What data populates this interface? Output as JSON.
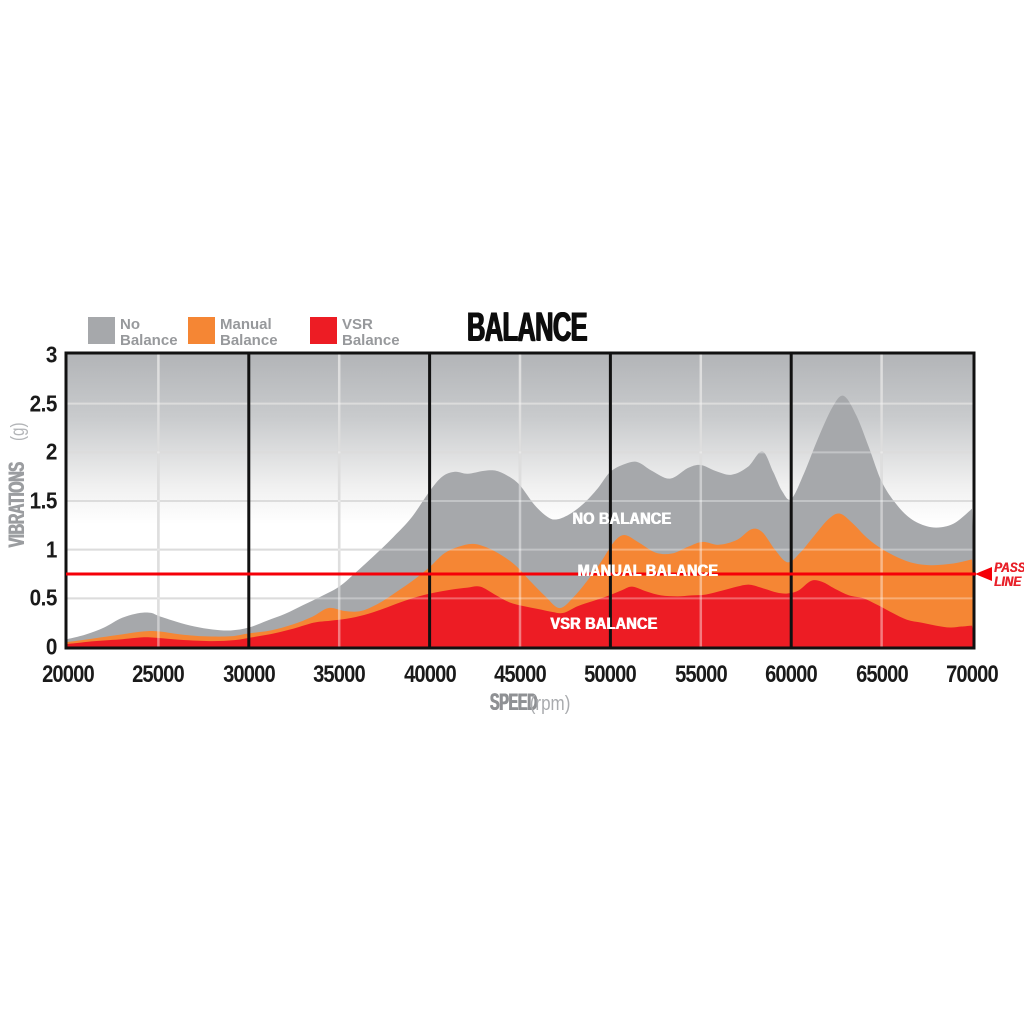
{
  "title": "BALANCE",
  "legend": [
    {
      "line1": "No",
      "line2": "Balance",
      "color": "#a6a8ab"
    },
    {
      "line1": "Manual",
      "line2": "Balance",
      "color": "#f58634"
    },
    {
      "line1": "VSR",
      "line2": "Balance",
      "color": "#ed1c24"
    }
  ],
  "y_axis": {
    "label": "VIBRATIONS",
    "unit": "(g)",
    "ticks": [
      "3",
      "2.5",
      "2",
      "1.5",
      "1",
      "0.5",
      "0"
    ]
  },
  "x_axis": {
    "label": "SPEED",
    "unit": "(rpm)",
    "ticks": [
      "20000",
      "25000",
      "30000",
      "35000",
      "40000",
      "45000",
      "50000",
      "55000",
      "60000",
      "65000",
      "70000"
    ]
  },
  "area_labels": {
    "no": "NO BALANCE",
    "manual": "MANUAL BALANCE",
    "vsr": "VSR BALANCE"
  },
  "pass_label": {
    "line1": "PASS",
    "line2": "LINE"
  },
  "colors": {
    "no_balance": "#a6a8ab",
    "manual_balance": "#f58634",
    "vsr_balance": "#ed1c24",
    "pass_line": "#f50008",
    "frame": "#111111",
    "grid_light": "#cccccc",
    "bg_gradient_top": "#b2b4b7"
  },
  "chart_data": {
    "type": "area",
    "title": "BALANCE",
    "xlabel": "SPEED (rpm)",
    "ylabel": "VIBRATIONS (g)",
    "xlim": [
      20000,
      70000
    ],
    "ylim": [
      0,
      3
    ],
    "x_tick_step": 5000,
    "y_tick_step": 0.5,
    "grid": true,
    "legend_position": "top",
    "pass_line_value": 0.75,
    "series": [
      {
        "name": "No Balance",
        "color": "#a6a8ab",
        "points": [
          [
            20000,
            0.08
          ],
          [
            21000,
            0.13
          ],
          [
            22000,
            0.2
          ],
          [
            23000,
            0.3
          ],
          [
            24000,
            0.35
          ],
          [
            24600,
            0.35
          ],
          [
            25000,
            0.32
          ],
          [
            26000,
            0.26
          ],
          [
            27000,
            0.21
          ],
          [
            28000,
            0.18
          ],
          [
            29000,
            0.17
          ],
          [
            30000,
            0.2
          ],
          [
            31000,
            0.27
          ],
          [
            32000,
            0.34
          ],
          [
            33000,
            0.43
          ],
          [
            34000,
            0.52
          ],
          [
            35000,
            0.62
          ],
          [
            36000,
            0.78
          ],
          [
            37000,
            0.95
          ],
          [
            38000,
            1.13
          ],
          [
            39000,
            1.33
          ],
          [
            40000,
            1.6
          ],
          [
            40700,
            1.75
          ],
          [
            41400,
            1.8
          ],
          [
            42100,
            1.78
          ],
          [
            43000,
            1.81
          ],
          [
            43700,
            1.81
          ],
          [
            44400,
            1.75
          ],
          [
            45000,
            1.66
          ],
          [
            45800,
            1.46
          ],
          [
            46500,
            1.34
          ],
          [
            47000,
            1.31
          ],
          [
            47700,
            1.36
          ],
          [
            48500,
            1.47
          ],
          [
            49300,
            1.63
          ],
          [
            50000,
            1.8
          ],
          [
            50800,
            1.88
          ],
          [
            51500,
            1.9
          ],
          [
            52300,
            1.81
          ],
          [
            53300,
            1.73
          ],
          [
            54300,
            1.84
          ],
          [
            55000,
            1.87
          ],
          [
            55800,
            1.81
          ],
          [
            56700,
            1.77
          ],
          [
            57600,
            1.85
          ],
          [
            58400,
            2.01
          ],
          [
            59000,
            1.8
          ],
          [
            59500,
            1.6
          ],
          [
            60000,
            1.52
          ],
          [
            60700,
            1.78
          ],
          [
            61500,
            2.15
          ],
          [
            62300,
            2.47
          ],
          [
            62900,
            2.58
          ],
          [
            63600,
            2.38
          ],
          [
            64300,
            2.05
          ],
          [
            65000,
            1.7
          ],
          [
            65800,
            1.47
          ],
          [
            66600,
            1.32
          ],
          [
            67500,
            1.24
          ],
          [
            68300,
            1.23
          ],
          [
            69100,
            1.28
          ],
          [
            70000,
            1.42
          ]
        ]
      },
      {
        "name": "Manual Balance",
        "color": "#f58634",
        "points": [
          [
            20000,
            0.05
          ],
          [
            21500,
            0.09
          ],
          [
            23000,
            0.13
          ],
          [
            24200,
            0.16
          ],
          [
            25000,
            0.16
          ],
          [
            26200,
            0.13
          ],
          [
            27500,
            0.11
          ],
          [
            29000,
            0.11
          ],
          [
            30000,
            0.14
          ],
          [
            31200,
            0.17
          ],
          [
            32400,
            0.23
          ],
          [
            33500,
            0.31
          ],
          [
            34400,
            0.4
          ],
          [
            35300,
            0.37
          ],
          [
            36200,
            0.37
          ],
          [
            37200,
            0.45
          ],
          [
            38200,
            0.57
          ],
          [
            39200,
            0.7
          ],
          [
            40000,
            0.82
          ],
          [
            40800,
            0.96
          ],
          [
            41600,
            1.03
          ],
          [
            42400,
            1.06
          ],
          [
            43200,
            1.02
          ],
          [
            44000,
            0.94
          ],
          [
            44800,
            0.83
          ],
          [
            45600,
            0.67
          ],
          [
            46400,
            0.52
          ],
          [
            47200,
            0.4
          ],
          [
            48000,
            0.52
          ],
          [
            48800,
            0.7
          ],
          [
            49500,
            0.88
          ],
          [
            50200,
            1.08
          ],
          [
            50800,
            1.15
          ],
          [
            51600,
            1.07
          ],
          [
            52500,
            0.97
          ],
          [
            53400,
            0.96
          ],
          [
            54300,
            1.03
          ],
          [
            55100,
            1.08
          ],
          [
            56000,
            1.05
          ],
          [
            57000,
            1.1
          ],
          [
            57800,
            1.21
          ],
          [
            58400,
            1.18
          ],
          [
            59100,
            1.0
          ],
          [
            59800,
            0.87
          ],
          [
            60500,
            0.97
          ],
          [
            61300,
            1.15
          ],
          [
            62100,
            1.32
          ],
          [
            62700,
            1.37
          ],
          [
            63400,
            1.27
          ],
          [
            64200,
            1.12
          ],
          [
            65000,
            1.01
          ],
          [
            65900,
            0.92
          ],
          [
            66800,
            0.86
          ],
          [
            67700,
            0.84
          ],
          [
            68600,
            0.85
          ],
          [
            69300,
            0.87
          ],
          [
            70000,
            0.9
          ]
        ]
      },
      {
        "name": "VSR Balance",
        "color": "#ed1c24",
        "points": [
          [
            20000,
            0.03
          ],
          [
            21500,
            0.06
          ],
          [
            23000,
            0.08
          ],
          [
            24200,
            0.1
          ],
          [
            25200,
            0.09
          ],
          [
            26500,
            0.07
          ],
          [
            28000,
            0.06
          ],
          [
            29200,
            0.07
          ],
          [
            30200,
            0.1
          ],
          [
            31400,
            0.14
          ],
          [
            32500,
            0.19
          ],
          [
            33600,
            0.25
          ],
          [
            34500,
            0.27
          ],
          [
            35400,
            0.29
          ],
          [
            36400,
            0.33
          ],
          [
            37400,
            0.39
          ],
          [
            38400,
            0.46
          ],
          [
            39400,
            0.52
          ],
          [
            40300,
            0.56
          ],
          [
            41200,
            0.59
          ],
          [
            42100,
            0.61
          ],
          [
            42800,
            0.62
          ],
          [
            43600,
            0.54
          ],
          [
            44400,
            0.46
          ],
          [
            45200,
            0.42
          ],
          [
            46000,
            0.39
          ],
          [
            46800,
            0.36
          ],
          [
            47400,
            0.35
          ],
          [
            48200,
            0.42
          ],
          [
            49000,
            0.47
          ],
          [
            49800,
            0.52
          ],
          [
            50600,
            0.58
          ],
          [
            51200,
            0.62
          ],
          [
            52000,
            0.57
          ],
          [
            52800,
            0.53
          ],
          [
            53700,
            0.52
          ],
          [
            54500,
            0.53
          ],
          [
            55300,
            0.54
          ],
          [
            56200,
            0.58
          ],
          [
            57000,
            0.62
          ],
          [
            57700,
            0.64
          ],
          [
            58500,
            0.6
          ],
          [
            59200,
            0.56
          ],
          [
            59800,
            0.55
          ],
          [
            60400,
            0.58
          ],
          [
            61100,
            0.68
          ],
          [
            61700,
            0.67
          ],
          [
            62400,
            0.6
          ],
          [
            63200,
            0.53
          ],
          [
            64000,
            0.5
          ],
          [
            64800,
            0.43
          ],
          [
            65600,
            0.35
          ],
          [
            66400,
            0.28
          ],
          [
            67200,
            0.25
          ],
          [
            68000,
            0.22
          ],
          [
            68800,
            0.2
          ],
          [
            69400,
            0.21
          ],
          [
            70000,
            0.22
          ]
        ]
      }
    ]
  }
}
